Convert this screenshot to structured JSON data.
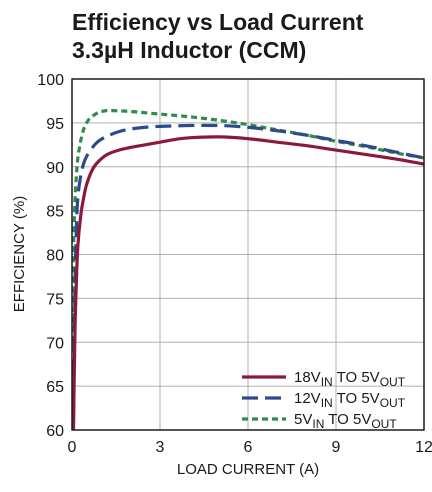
{
  "chart_data": {
    "type": "line",
    "title": [
      "Efficiency vs Load Current",
      "3.3µH Inductor (CCM)"
    ],
    "xlabel": "LOAD CURRENT (A)",
    "ylabel": "EFFICIENCY (%)",
    "xlim": [
      0,
      12
    ],
    "ylim": [
      60,
      100
    ],
    "xticks": [
      0,
      3,
      6,
      9,
      12
    ],
    "yticks": [
      60,
      65,
      70,
      75,
      80,
      85,
      90,
      95,
      100
    ],
    "grid": true,
    "legend_position": "bottom-right",
    "series": [
      {
        "name": "18V_IN TO 5V_OUT",
        "legend": {
          "a": "18V",
          "a_sub": "IN",
          "b": " TO 5V",
          "b_sub": "OUT"
        },
        "color": "#8b1a3a",
        "dash": "solid",
        "x": [
          0.05,
          0.1,
          0.15,
          0.2,
          0.3,
          0.4,
          0.5,
          0.7,
          0.9,
          1.2,
          1.6,
          2.0,
          2.5,
          3.0,
          3.5,
          4.0,
          5.0,
          6.0,
          7.0,
          8.0,
          9.0,
          10.0,
          11.0,
          12.0
        ],
        "y": [
          60,
          71,
          77,
          81,
          84.5,
          86.5,
          88,
          89.7,
          90.6,
          91.4,
          91.9,
          92.2,
          92.5,
          92.8,
          93.1,
          93.3,
          93.4,
          93.2,
          92.8,
          92.4,
          91.9,
          91.4,
          90.9,
          90.3
        ]
      },
      {
        "name": "12V_IN TO 5V_OUT",
        "legend": {
          "a": "12V",
          "a_sub": "IN",
          "b": " TO 5V",
          "b_sub": "OUT"
        },
        "color": "#2c4a8c",
        "dash": "long-dash",
        "x": [
          0.05,
          0.1,
          0.15,
          0.2,
          0.3,
          0.4,
          0.5,
          0.7,
          0.9,
          1.2,
          1.6,
          2.0,
          2.5,
          3.0,
          4.0,
          5.0,
          6.0,
          7.0,
          8.0,
          9.0,
          10.0,
          11.0,
          12.0
        ],
        "y": [
          61,
          76,
          83,
          86.5,
          89,
          90.4,
          91.2,
          92.2,
          92.9,
          93.5,
          94,
          94.3,
          94.5,
          94.6,
          94.7,
          94.7,
          94.5,
          94.1,
          93.6,
          93.0,
          92.4,
          91.7,
          91.0
        ]
      },
      {
        "name": "5V_IN TO 5V_OUT",
        "legend": {
          "a": "5V",
          "a_sub": "IN",
          "b": " TO 5V",
          "b_sub": "OUT"
        },
        "color": "#2e8b4a",
        "dash": "short-dash",
        "x": [
          0.02,
          0.05,
          0.1,
          0.15,
          0.2,
          0.3,
          0.4,
          0.5,
          0.6,
          0.8,
          1.0,
          1.3,
          2.0,
          3.0,
          4.0,
          5.0,
          6.0,
          7.0,
          8.0,
          9.0,
          10.0,
          11.0,
          12.0
        ],
        "y": [
          70,
          80,
          86,
          89,
          91,
          93,
          94.3,
          95,
          95.5,
          96,
          96.3,
          96.4,
          96.3,
          96.0,
          95.7,
          95.3,
          94.8,
          94.2,
          93.6,
          92.9,
          92.3,
          91.6,
          91.0
        ]
      }
    ]
  }
}
